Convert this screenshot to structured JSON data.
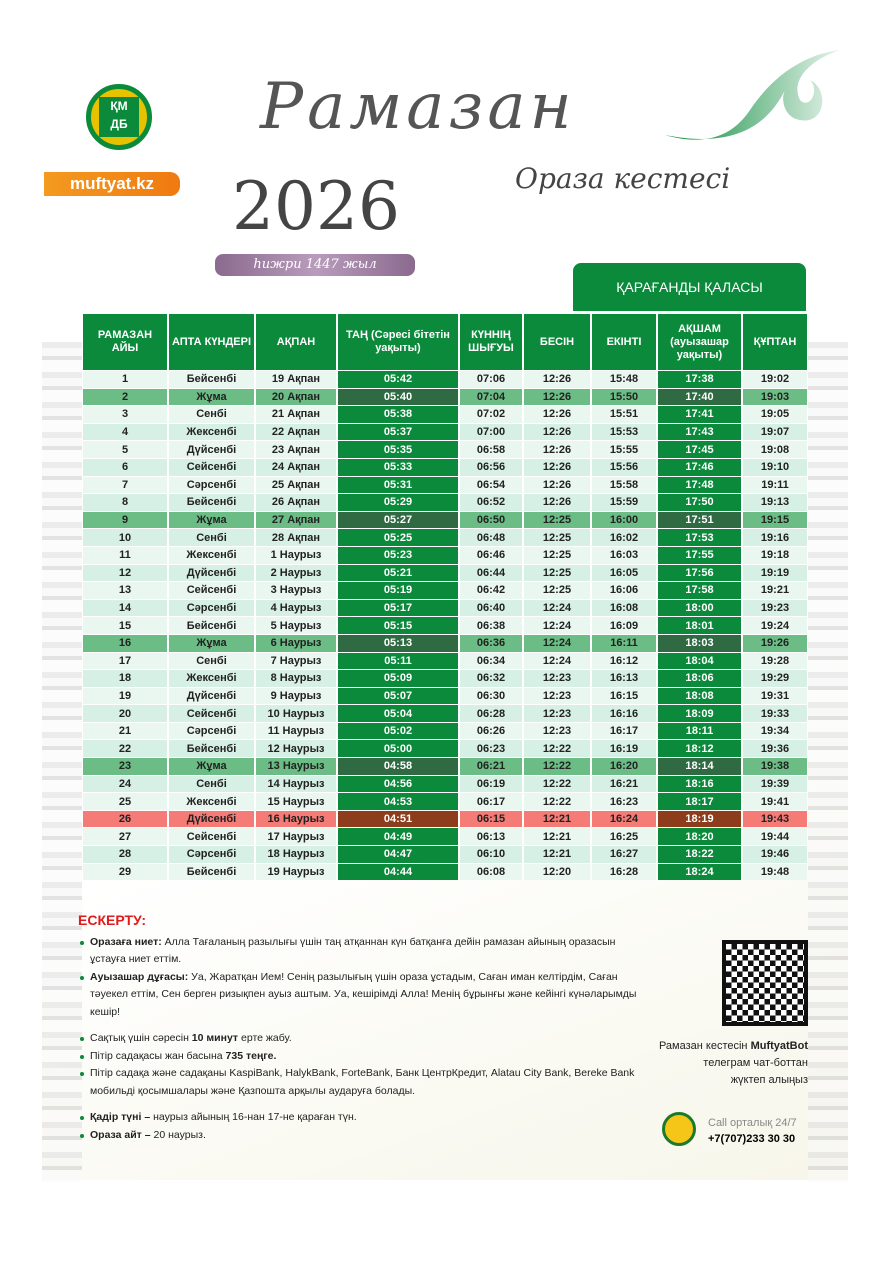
{
  "header": {
    "site": "muftyat.kz",
    "logo_text": "ҚМДБ",
    "title": "Рамазан",
    "year": "2026",
    "subtitle": "Ораза кестесі",
    "hijri": "һижри 1447 жыл",
    "city": "ҚАРАҒАНДЫ ҚАЛАСЫ"
  },
  "colors": {
    "green": "#0a8a3a",
    "friday": "#6bbd85",
    "qadir": "#f47b76",
    "orange": "#f07a10",
    "alert": "#e01b1b"
  },
  "table": {
    "columns": [
      "РАМАЗАН АЙЫ",
      "АПТА КҮНДЕРІ",
      "АҚПАН",
      "ТАҢ (Сәресі бітетін уақыты)",
      "КҮННІҢ ШЫҒУЫ",
      "БЕСІН",
      "ЕКІНТІ",
      "АҚШАМ (ауызашар уақыты)",
      "ҚҰПТАН"
    ],
    "rows": [
      [
        "1",
        "Бейсенбі",
        "19 Ақпан",
        "05:42",
        "07:06",
        "12:26",
        "15:48",
        "17:38",
        "19:02",
        ""
      ],
      [
        "2",
        "Жұма",
        "20 Ақпан",
        "05:40",
        "07:04",
        "12:26",
        "15:50",
        "17:40",
        "19:03",
        "friday"
      ],
      [
        "3",
        "Сенбі",
        "21 Ақпан",
        "05:38",
        "07:02",
        "12:26",
        "15:51",
        "17:41",
        "19:05",
        ""
      ],
      [
        "4",
        "Жексенбі",
        "22 Ақпан",
        "05:37",
        "07:00",
        "12:26",
        "15:53",
        "17:43",
        "19:07",
        ""
      ],
      [
        "5",
        "Дүйсенбі",
        "23 Ақпан",
        "05:35",
        "06:58",
        "12:26",
        "15:55",
        "17:45",
        "19:08",
        ""
      ],
      [
        "6",
        "Сейсенбі",
        "24 Ақпан",
        "05:33",
        "06:56",
        "12:26",
        "15:56",
        "17:46",
        "19:10",
        ""
      ],
      [
        "7",
        "Сәрсенбі",
        "25 Ақпан",
        "05:31",
        "06:54",
        "12:26",
        "15:58",
        "17:48",
        "19:11",
        ""
      ],
      [
        "8",
        "Бейсенбі",
        "26 Ақпан",
        "05:29",
        "06:52",
        "12:26",
        "15:59",
        "17:50",
        "19:13",
        ""
      ],
      [
        "9",
        "Жұма",
        "27 Ақпан",
        "05:27",
        "06:50",
        "12:25",
        "16:00",
        "17:51",
        "19:15",
        "friday"
      ],
      [
        "10",
        "Сенбі",
        "28 Ақпан",
        "05:25",
        "06:48",
        "12:25",
        "16:02",
        "17:53",
        "19:16",
        ""
      ],
      [
        "11",
        "Жексенбі",
        "1 Наурыз",
        "05:23",
        "06:46",
        "12:25",
        "16:03",
        "17:55",
        "19:18",
        ""
      ],
      [
        "12",
        "Дүйсенбі",
        "2 Наурыз",
        "05:21",
        "06:44",
        "12:25",
        "16:05",
        "17:56",
        "19:19",
        ""
      ],
      [
        "13",
        "Сейсенбі",
        "3 Наурыз",
        "05:19",
        "06:42",
        "12:25",
        "16:06",
        "17:58",
        "19:21",
        ""
      ],
      [
        "14",
        "Сәрсенбі",
        "4 Наурыз",
        "05:17",
        "06:40",
        "12:24",
        "16:08",
        "18:00",
        "19:23",
        ""
      ],
      [
        "15",
        "Бейсенбі",
        "5 Наурыз",
        "05:15",
        "06:38",
        "12:24",
        "16:09",
        "18:01",
        "19:24",
        ""
      ],
      [
        "16",
        "Жұма",
        "6 Наурыз",
        "05:13",
        "06:36",
        "12:24",
        "16:11",
        "18:03",
        "19:26",
        "friday"
      ],
      [
        "17",
        "Сенбі",
        "7 Наурыз",
        "05:11",
        "06:34",
        "12:24",
        "16:12",
        "18:04",
        "19:28",
        ""
      ],
      [
        "18",
        "Жексенбі",
        "8 Наурыз",
        "05:09",
        "06:32",
        "12:23",
        "16:13",
        "18:06",
        "19:29",
        ""
      ],
      [
        "19",
        "Дүйсенбі",
        "9 Наурыз",
        "05:07",
        "06:30",
        "12:23",
        "16:15",
        "18:08",
        "19:31",
        ""
      ],
      [
        "20",
        "Сейсенбі",
        "10 Наурыз",
        "05:04",
        "06:28",
        "12:23",
        "16:16",
        "18:09",
        "19:33",
        ""
      ],
      [
        "21",
        "Сәрсенбі",
        "11 Наурыз",
        "05:02",
        "06:26",
        "12:23",
        "16:17",
        "18:11",
        "19:34",
        ""
      ],
      [
        "22",
        "Бейсенбі",
        "12 Наурыз",
        "05:00",
        "06:23",
        "12:22",
        "16:19",
        "18:12",
        "19:36",
        ""
      ],
      [
        "23",
        "Жұма",
        "13 Наурыз",
        "04:58",
        "06:21",
        "12:22",
        "16:20",
        "18:14",
        "19:38",
        "friday"
      ],
      [
        "24",
        "Сенбі",
        "14 Наурыз",
        "04:56",
        "06:19",
        "12:22",
        "16:21",
        "18:16",
        "19:39",
        ""
      ],
      [
        "25",
        "Жексенбі",
        "15 Наурыз",
        "04:53",
        "06:17",
        "12:22",
        "16:23",
        "18:17",
        "19:41",
        ""
      ],
      [
        "26",
        "Дүйсенбі",
        "16 Наурыз",
        "04:51",
        "06:15",
        "12:21",
        "16:24",
        "18:19",
        "19:43",
        "qadir"
      ],
      [
        "27",
        "Сейсенбі",
        "17 Наурыз",
        "04:49",
        "06:13",
        "12:21",
        "16:25",
        "18:20",
        "19:44",
        ""
      ],
      [
        "28",
        "Сәрсенбі",
        "18 Наурыз",
        "04:47",
        "06:10",
        "12:21",
        "16:27",
        "18:22",
        "19:46",
        ""
      ],
      [
        "29",
        "Бейсенбі",
        "19 Наурыз",
        "04:44",
        "06:08",
        "12:20",
        "16:28",
        "18:24",
        "19:48",
        ""
      ]
    ]
  },
  "notes": {
    "title": "ЕСКЕРТУ:",
    "items": [
      {
        "b": "Оразаға ниет:",
        "t": " Алла Тағаланың разылығы үшін таң атқаннан күн батқанға дейін рамазан айының оразасын ұстауға ниет еттім.",
        "a": "",
        "gap": false
      },
      {
        "b": "Ауызашар дұғасы:",
        "t": " Уа, Жаратқан Ием! Сенің разылығың үшін ораза ұстадым, Саған иман келтірдім, Саған тәуекел еттім, Сен берген ризықпен ауыз аштым. Уа, кешірімді Алла! Менің бұрынғы және кейінгі күнәларымды кешір!",
        "a": "",
        "gap": false
      },
      {
        "b": "",
        "t": "Сақтық үшін сәресін ",
        "m": "10 минут",
        "a": " ерте жабу.",
        "gap": true
      },
      {
        "b": "",
        "t": "Пітір садақасы жан басына ",
        "m": "735 теңге.",
        "a": "",
        "gap": false
      },
      {
        "b": "",
        "t": "Пітір садақа және садақаны KaspiBank, HalykBank, ForteBank, Банк ЦентрКредит, Alatau City Bank, Bereke Bank мобильді қосымшалары және Қазпошта арқылы аударуға болады.",
        "a": "",
        "gap": false
      },
      {
        "b": "Қадір түні –",
        "t": " наурыз айының 16-нан 17-не қараған түн.",
        "a": "",
        "gap": true
      },
      {
        "b": "Ораза айт –",
        "t": " 20 наурыз.",
        "a": "",
        "gap": false
      }
    ]
  },
  "bot": {
    "line1": "Рамазан кестесін ",
    "bot_name": "MuftyatBot",
    "line2": "телеграм чат-боттан",
    "line3": "жүктеп алыңыз"
  },
  "call": {
    "label": "Call орталық 24/7",
    "phone": "+7(707)233 30 30"
  }
}
